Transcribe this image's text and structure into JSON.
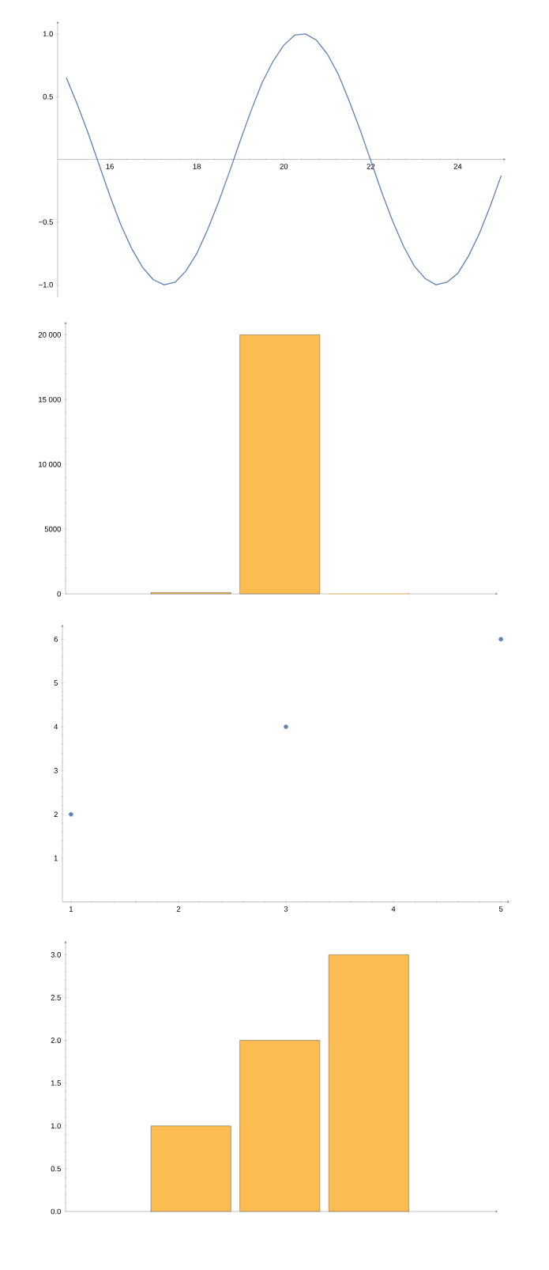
{
  "chart_data": [
    {
      "type": "line",
      "color": "#5e81b5",
      "marker": "none",
      "xlim": [
        14.8,
        25.1
      ],
      "ylim": [
        -1.1,
        1.1
      ],
      "xticks": [
        16,
        18,
        20,
        22,
        24
      ],
      "yticks": [
        {
          "value": -1,
          "label": "−1.0"
        },
        {
          "value": -0.5,
          "label": "−0.5"
        },
        {
          "value": 0.5,
          "label": "0.5"
        },
        {
          "value": 1,
          "label": "1.0"
        }
      ],
      "x": [
        15,
        15.25,
        15.5,
        15.75,
        16,
        16.25,
        16.5,
        16.75,
        17,
        17.25,
        17.5,
        17.75,
        18,
        18.25,
        18.5,
        18.75,
        19,
        19.25,
        19.5,
        19.75,
        20,
        20.25,
        20.5,
        20.75,
        21,
        21.25,
        21.5,
        21.75,
        22,
        22.25,
        22.5,
        22.75,
        23,
        23.25,
        23.5,
        23.75,
        24,
        24.25,
        24.5,
        24.75,
        25
      ],
      "values": [
        0.65,
        0.44,
        0.21,
        -0.04,
        -0.29,
        -0.52,
        -0.71,
        -0.86,
        -0.96,
        -1.0,
        -0.98,
        -0.89,
        -0.75,
        -0.56,
        -0.34,
        -0.1,
        0.15,
        0.39,
        0.61,
        0.78,
        0.91,
        0.99,
        1.0,
        0.95,
        0.84,
        0.68,
        0.47,
        0.24,
        -0.01,
        -0.26,
        -0.49,
        -0.69,
        -0.85,
        -0.95,
        -1.0,
        -0.98,
        -0.91,
        -0.77,
        -0.59,
        -0.37,
        -0.13
      ]
    },
    {
      "type": "bar",
      "color": "#fcbc52",
      "categories": [
        null,
        null,
        null
      ],
      "values": [
        100,
        20000,
        0
      ],
      "ylim": [
        0,
        21000
      ],
      "yticks": [
        0,
        5000,
        {
          "value": 10000,
          "label": "10 000"
        },
        {
          "value": 15000,
          "label": "15 000"
        },
        {
          "value": 20000,
          "label": "20 000"
        }
      ]
    },
    {
      "type": "scatter",
      "color": "#5e81b5",
      "marker": "circle",
      "x": [
        1,
        3,
        5
      ],
      "values": [
        2,
        4,
        6
      ],
      "xlim": [
        0.92,
        5.08
      ],
      "ylim": [
        0,
        6.33
      ],
      "xticks": [
        1,
        2,
        3,
        4,
        5
      ],
      "yticks": [
        1,
        2,
        3,
        4,
        5,
        6
      ]
    },
    {
      "type": "bar",
      "color": "#fcbc52",
      "categories": [
        null,
        null,
        null
      ],
      "values": [
        1,
        2,
        3
      ],
      "ylim": [
        0,
        3.16
      ],
      "yticks": [
        {
          "value": 0,
          "label": "0.0"
        },
        {
          "value": 0.5,
          "label": "0.5"
        },
        {
          "value": 1,
          "label": "1.0"
        },
        {
          "value": 1.5,
          "label": "1.5"
        },
        {
          "value": 2,
          "label": "2.0"
        },
        {
          "value": 2.5,
          "label": "2.5"
        },
        {
          "value": 3,
          "label": "3.0"
        }
      ]
    }
  ]
}
